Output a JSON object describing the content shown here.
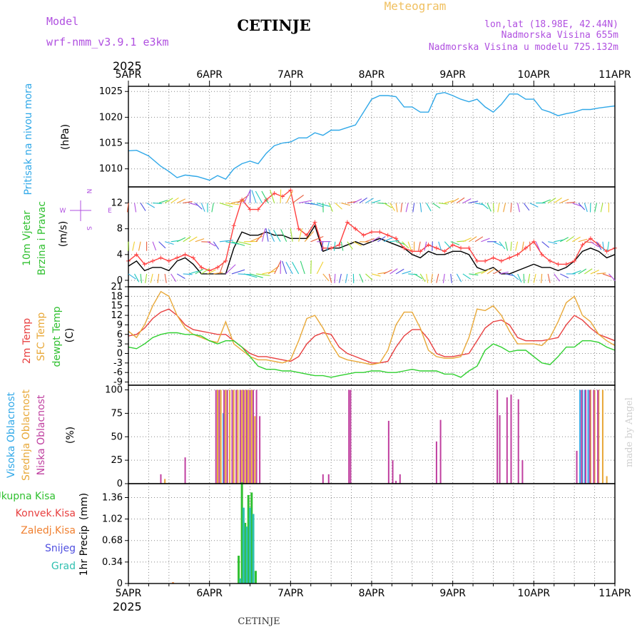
{
  "header": {
    "model_label": "Model",
    "model_name": "wrf-nmm_v3.9.1 e3km",
    "station": "CETINJE",
    "chart_title": "Meteogram",
    "coords": "lon,lat (18.98E, 42.44N)",
    "elevation": "Nadmorska Visina 655m",
    "model_elevation": "Nadmorska Visina u modelu 725.132m",
    "colors": {
      "purple": "#b050e0",
      "title_gold": "#f0c060"
    }
  },
  "footer": {
    "station": "CETINJE",
    "credit": "made by Angel"
  },
  "time_axis": {
    "year": "2025",
    "start_day": 5,
    "labels": [
      "5APR",
      "6APR",
      "7APR",
      "8APR",
      "9APR",
      "10APR",
      "11APR"
    ]
  },
  "wind_legend": {
    "n": "N",
    "s": "S",
    "w": "W",
    "e": "E"
  },
  "chart_data": [
    {
      "id": "pressure",
      "type": "line",
      "ylabel": "Pritisak na nivou mora",
      "unit": "(hPa)",
      "ylim": [
        1006.5,
        1026
      ],
      "yticks": [
        1010,
        1015,
        1020,
        1025
      ],
      "series": [
        {
          "name": "Pritisak na nivou mora",
          "color": "#30a8e8",
          "x": [
            0,
            0.1,
            0.25,
            0.4,
            0.5,
            0.6,
            0.7,
            0.85,
            1.0,
            1.1,
            1.2,
            1.3,
            1.4,
            1.5,
            1.6,
            1.7,
            1.8,
            1.9,
            2.0,
            2.1,
            2.2,
            2.3,
            2.4,
            2.5,
            2.6,
            2.7,
            2.8,
            2.9,
            3.0,
            3.1,
            3.2,
            3.3,
            3.4,
            3.5,
            3.6,
            3.7,
            3.8,
            3.9,
            4.0,
            4.1,
            4.2,
            4.3,
            4.4,
            4.5,
            4.6,
            4.7,
            4.8,
            4.9,
            5.0,
            5.1,
            5.2,
            5.3,
            5.4,
            5.5,
            5.6,
            5.7,
            5.8,
            5.9,
            6.0
          ],
          "values": [
            1013.5,
            1013.6,
            1012.5,
            1010.5,
            1009.5,
            1008.3,
            1008.8,
            1008.5,
            1007.8,
            1008.7,
            1008.0,
            1010.0,
            1011.0,
            1011.5,
            1011.0,
            1013.0,
            1014.5,
            1015.0,
            1015.2,
            1016.0,
            1016.0,
            1017.0,
            1016.5,
            1017.5,
            1017.5,
            1018.0,
            1018.5,
            1021.0,
            1023.5,
            1024.2,
            1024.2,
            1024.0,
            1022.0,
            1022.0,
            1021.0,
            1021.0,
            1024.5,
            1024.8,
            1024.2,
            1023.5,
            1023.0,
            1023.5,
            1022.0,
            1021.0,
            1022.5,
            1024.5,
            1024.5,
            1023.5,
            1023.5,
            1021.5,
            1021.0,
            1020.3,
            1020.7,
            1021.0,
            1021.5,
            1021.5,
            1021.8,
            1022.0,
            1022.2
          ]
        }
      ]
    },
    {
      "id": "wind",
      "type": "line",
      "ylabel": [
        "10m Vjetar",
        "Brzina i Pravac"
      ],
      "unit": "(m/s)",
      "ylim": [
        -1,
        14.5
      ],
      "yticks": [
        0,
        4,
        8,
        12
      ],
      "series": [
        {
          "name": "Brzina vjetra",
          "color": "#000000",
          "x": [
            0,
            0.1,
            0.2,
            0.3,
            0.4,
            0.5,
            0.6,
            0.7,
            0.8,
            0.9,
            1.0,
            1.1,
            1.2,
            1.3,
            1.4,
            1.5,
            1.6,
            1.7,
            1.8,
            1.9,
            2.0,
            2.1,
            2.2,
            2.3,
            2.4,
            2.5,
            2.6,
            2.7,
            2.8,
            2.9,
            3.0,
            3.1,
            3.2,
            3.3,
            3.4,
            3.5,
            3.6,
            3.7,
            3.8,
            3.9,
            4.0,
            4.1,
            4.2,
            4.3,
            4.4,
            4.5,
            4.6,
            4.7,
            4.8,
            4.9,
            5.0,
            5.1,
            5.2,
            5.3,
            5.4,
            5.5,
            5.6,
            5.7,
            5.8,
            5.9,
            6.0
          ],
          "values": [
            2.2,
            3.0,
            1.5,
            2.0,
            2.0,
            1.5,
            3.0,
            3.5,
            2.5,
            1.0,
            1.0,
            1.0,
            1.0,
            5.0,
            7.5,
            7.0,
            7.0,
            7.5,
            7.0,
            7.0,
            6.5,
            6.5,
            6.5,
            8.5,
            4.5,
            5.0,
            5.0,
            5.5,
            6.0,
            5.5,
            6.0,
            6.5,
            6.0,
            5.5,
            5.0,
            4.0,
            3.5,
            4.5,
            4.0,
            4.0,
            4.5,
            4.5,
            4.0,
            2.0,
            1.5,
            2.0,
            1.0,
            1.0,
            1.5,
            2.0,
            2.5,
            2.0,
            2.0,
            1.5,
            2.0,
            3.0,
            4.5,
            5.0,
            4.5,
            3.5,
            4.0
          ]
        },
        {
          "name": "Udari vjetra",
          "color": "#ff4040",
          "x": [
            0,
            0.1,
            0.2,
            0.3,
            0.4,
            0.5,
            0.6,
            0.7,
            0.8,
            0.9,
            1.0,
            1.1,
            1.2,
            1.3,
            1.4,
            1.5,
            1.6,
            1.7,
            1.8,
            1.9,
            2.0,
            2.1,
            2.2,
            2.3,
            2.4,
            2.5,
            2.6,
            2.7,
            2.8,
            2.9,
            3.0,
            3.1,
            3.2,
            3.3,
            3.4,
            3.5,
            3.6,
            3.7,
            3.8,
            3.9,
            4.0,
            4.1,
            4.2,
            4.3,
            4.4,
            4.5,
            4.6,
            4.7,
            4.8,
            4.9,
            5.0,
            5.1,
            5.2,
            5.3,
            5.4,
            5.5,
            5.6,
            5.7,
            5.8,
            5.9,
            6.0
          ],
          "values": [
            3.0,
            4.0,
            2.5,
            3.0,
            3.5,
            3.0,
            3.5,
            4.0,
            3.5,
            2.0,
            1.5,
            2.0,
            3.0,
            8.5,
            12.5,
            11.0,
            11.0,
            12.5,
            13.5,
            13.0,
            14.0,
            8.0,
            7.0,
            9.0,
            5.0,
            5.0,
            5.5,
            9.0,
            8.0,
            7.0,
            7.5,
            7.5,
            7.0,
            6.5,
            5.0,
            4.5,
            4.5,
            5.5,
            5.0,
            4.5,
            5.5,
            5.0,
            5.0,
            3.0,
            3.0,
            3.5,
            3.0,
            3.5,
            4.0,
            5.0,
            6.0,
            4.0,
            3.0,
            2.5,
            2.5,
            3.0,
            5.5,
            6.5,
            5.5,
            4.5,
            5.0
          ]
        }
      ]
    },
    {
      "id": "temperature",
      "type": "line",
      "ylabel": [
        "2m Temp",
        "SFC Temp",
        "dewpt Temp"
      ],
      "unit": "(C)",
      "ylim": [
        -10,
        21
      ],
      "yticks": [
        -9,
        -6,
        -3,
        0,
        3,
        6,
        9,
        12,
        15,
        18,
        21
      ],
      "series": [
        {
          "name": "2m Temp",
          "color": "#e84040",
          "x": [
            0,
            0.1,
            0.2,
            0.3,
            0.4,
            0.5,
            0.6,
            0.7,
            0.8,
            0.9,
            1.0,
            1.1,
            1.2,
            1.3,
            1.4,
            1.5,
            1.6,
            1.7,
            1.8,
            1.9,
            2.0,
            2.1,
            2.2,
            2.3,
            2.4,
            2.5,
            2.6,
            2.7,
            2.8,
            2.9,
            3.0,
            3.1,
            3.2,
            3.3,
            3.4,
            3.5,
            3.6,
            3.7,
            3.8,
            3.9,
            4.0,
            4.1,
            4.2,
            4.3,
            4.4,
            4.5,
            4.6,
            4.7,
            4.8,
            4.9,
            5.0,
            5.1,
            5.2,
            5.3,
            5.4,
            5.5,
            5.6,
            5.7,
            5.8,
            5.9,
            6.0
          ],
          "values": [
            5.5,
            6.0,
            8.0,
            11.0,
            13.0,
            14.0,
            12.0,
            9.0,
            7.5,
            7.0,
            6.5,
            6.0,
            6.0,
            4.0,
            2.0,
            0.0,
            -1.0,
            -1.0,
            -1.5,
            -2.0,
            -2.5,
            -1.0,
            3.0,
            5.5,
            6.5,
            6.0,
            2.0,
            0.0,
            -1.0,
            -2.0,
            -3.0,
            -3.0,
            -2.5,
            2.0,
            5.5,
            7.5,
            7.5,
            4.5,
            0.0,
            -1.0,
            -1.0,
            -0.5,
            0.0,
            4.0,
            8.0,
            10.0,
            10.5,
            9.0,
            5.0,
            4.0,
            4.0,
            4.0,
            4.5,
            5.0,
            9.0,
            12.0,
            10.5,
            8.0,
            6.0,
            5.0,
            4.0
          ]
        },
        {
          "name": "SFC Temp",
          "color": "#e8a838",
          "x": [
            0,
            0.1,
            0.2,
            0.3,
            0.4,
            0.5,
            0.6,
            0.7,
            0.8,
            0.9,
            1.0,
            1.1,
            1.2,
            1.3,
            1.4,
            1.5,
            1.6,
            1.7,
            1.8,
            1.9,
            2.0,
            2.1,
            2.2,
            2.3,
            2.4,
            2.5,
            2.6,
            2.7,
            2.8,
            2.9,
            3.0,
            3.1,
            3.2,
            3.3,
            3.4,
            3.5,
            3.6,
            3.7,
            3.8,
            3.9,
            4.0,
            4.1,
            4.2,
            4.3,
            4.4,
            4.5,
            4.6,
            4.7,
            4.8,
            4.9,
            5.0,
            5.1,
            5.2,
            5.3,
            5.4,
            5.5,
            5.6,
            5.7,
            5.8,
            5.9,
            6.0
          ],
          "values": [
            7.0,
            5.0,
            9.0,
            15.0,
            19.5,
            18.0,
            12.0,
            8.0,
            6.0,
            5.0,
            4.0,
            3.5,
            10.0,
            3.0,
            1.0,
            -1.0,
            -2.0,
            -2.0,
            -2.5,
            -3.0,
            -2.0,
            4.0,
            11.0,
            12.0,
            8.0,
            3.0,
            -1.0,
            -2.0,
            -2.5,
            -3.0,
            -3.5,
            -3.0,
            1.0,
            9.0,
            13.0,
            13.0,
            8.0,
            1.0,
            -1.0,
            -1.5,
            -1.5,
            -1.0,
            5.0,
            14.0,
            13.5,
            15.0,
            12.0,
            7.0,
            3.0,
            3.0,
            3.0,
            2.5,
            5.0,
            10.0,
            16.0,
            18.0,
            12.0,
            10.0,
            6.0,
            4.0,
            2.5
          ]
        },
        {
          "name": "dewpt Temp",
          "color": "#30d030",
          "x": [
            0,
            0.1,
            0.2,
            0.3,
            0.4,
            0.5,
            0.6,
            0.7,
            0.8,
            0.9,
            1.0,
            1.1,
            1.2,
            1.3,
            1.4,
            1.5,
            1.6,
            1.7,
            1.8,
            1.9,
            2.0,
            2.1,
            2.2,
            2.3,
            2.4,
            2.5,
            2.6,
            2.7,
            2.8,
            2.9,
            3.0,
            3.1,
            3.2,
            3.3,
            3.4,
            3.5,
            3.6,
            3.7,
            3.8,
            3.9,
            4.0,
            4.1,
            4.2,
            4.3,
            4.4,
            4.5,
            4.6,
            4.7,
            4.8,
            4.9,
            5.0,
            5.1,
            5.2,
            5.3,
            5.4,
            5.5,
            5.6,
            5.7,
            5.8,
            5.9,
            6.0
          ],
          "values": [
            2.0,
            1.5,
            3.0,
            5.0,
            6.0,
            6.5,
            6.5,
            6.0,
            6.0,
            5.5,
            4.0,
            3.0,
            4.0,
            4.0,
            2.0,
            -1.0,
            -4.0,
            -5.0,
            -5.0,
            -5.5,
            -5.5,
            -6.0,
            -6.5,
            -7.0,
            -7.0,
            -7.5,
            -7.0,
            -6.5,
            -6.0,
            -6.0,
            -5.5,
            -5.5,
            -6.0,
            -6.0,
            -5.5,
            -5.0,
            -5.5,
            -5.5,
            -5.5,
            -6.5,
            -6.5,
            -7.5,
            -5.5,
            -4.0,
            1.0,
            3.0,
            2.0,
            0.5,
            1.0,
            1.0,
            -1.0,
            -3.0,
            -3.5,
            -1.0,
            2.0,
            2.0,
            4.0,
            4.0,
            3.5,
            2.0,
            1.0
          ]
        }
      ]
    },
    {
      "id": "cloud",
      "type": "bar",
      "ylabel": [
        "Visoka Oblacnost",
        "Srednja Oblacnost",
        "Niska Oblacnost"
      ],
      "unit": "(%)",
      "ylim": [
        0,
        105
      ],
      "yticks": [
        0,
        25,
        50,
        75,
        100
      ],
      "series": [
        {
          "name": "Visoka Oblacnost",
          "color": "#30a8e8",
          "x": [
            1.17,
            5.57,
            5.6,
            5.63,
            5.67
          ],
          "values": [
            75,
            100,
            100,
            100,
            100
          ]
        },
        {
          "name": "Srednja Oblacnost",
          "color": "#e8a838",
          "x": [
            0.45,
            1.1,
            1.14,
            1.2,
            1.25,
            1.3,
            1.35,
            1.4,
            1.44,
            1.48,
            1.52,
            1.56,
            5.7,
            5.75,
            5.8,
            5.85,
            5.9
          ],
          "values": [
            5,
            100,
            100,
            100,
            100,
            100,
            100,
            100,
            100,
            100,
            100,
            72,
            100,
            100,
            100,
            100,
            8
          ]
        },
        {
          "name": "Niska Oblacnost",
          "color": "#c040a0",
          "x": [
            0.4,
            0.7,
            1.08,
            1.12,
            1.18,
            1.22,
            1.28,
            1.33,
            1.38,
            1.42,
            1.46,
            1.5,
            1.54,
            1.58,
            1.62,
            2.4,
            2.47,
            2.72,
            2.74,
            3.21,
            3.26,
            3.3,
            3.35,
            3.8,
            3.85,
            4.55,
            4.58,
            4.67,
            4.72,
            4.81,
            4.86,
            5.53,
            5.59,
            5.64,
            5.69,
            5.74,
            5.79
          ],
          "values": [
            10,
            28,
            100,
            100,
            100,
            100,
            100,
            100,
            100,
            100,
            100,
            100,
            100,
            100,
            72,
            10,
            10,
            100,
            100,
            67,
            25,
            3,
            10,
            45,
            68,
            100,
            73,
            92,
            95,
            90,
            25,
            35,
            100,
            100,
            100,
            100,
            100
          ]
        }
      ]
    },
    {
      "id": "precip",
      "type": "bar",
      "ylabel": "1hr Precip",
      "unit": "(mm)",
      "ylim": [
        0,
        1.58
      ],
      "yticks": [
        0,
        0.34,
        0.68,
        1.02,
        1.36
      ],
      "yticklabels": [
        "0",
        "0.34",
        "0.68",
        "1.02",
        "1.36"
      ],
      "series": [
        {
          "name": "Ukupna Kisa",
          "color": "#30c030",
          "x": [
            1.36,
            1.4,
            1.44,
            1.48,
            1.52,
            1.57
          ],
          "values": [
            0.44,
            1.6,
            0.96,
            1.4,
            1.44,
            0.2
          ]
        },
        {
          "name": "Konvek.Kisa",
          "color": "#e84040",
          "x": [],
          "values": []
        },
        {
          "name": "Zaledj.Kisa",
          "color": "#f08030",
          "x": [
            0.55
          ],
          "values": [
            0.02
          ]
        },
        {
          "name": "Snijeg",
          "color": "#5050e0",
          "x": [],
          "values": []
        },
        {
          "name": "Grad",
          "color": "#30c0b0",
          "x": [
            1.38,
            1.42,
            1.46,
            1.5,
            1.54
          ],
          "values": [
            0.08,
            1.2,
            0.9,
            1.2,
            1.1
          ]
        }
      ]
    }
  ]
}
